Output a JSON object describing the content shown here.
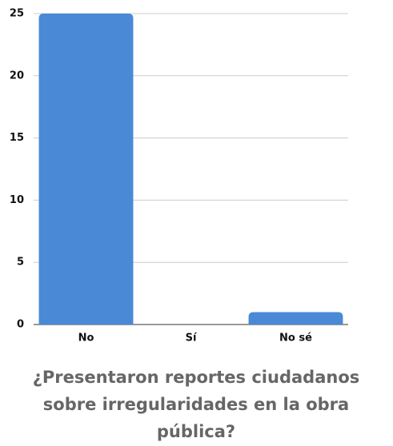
{
  "chart_data": {
    "type": "bar",
    "title": "¿Presentaron reportes ciudadanos sobre irregularidades en la obra pública?",
    "categories": [
      "No",
      "Sí",
      "No sé"
    ],
    "values": [
      25,
      0,
      1
    ],
    "color": "#4a89d6",
    "ylim": [
      0,
      25
    ],
    "yticks": [
      0,
      5,
      10,
      15,
      20,
      25
    ],
    "grid": true
  }
}
